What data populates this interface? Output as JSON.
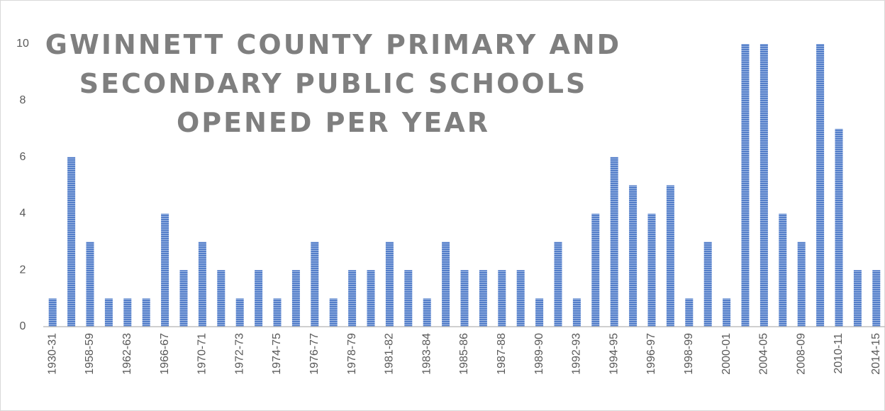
{
  "chart_data": {
    "type": "bar",
    "title": "GWINNETT COUNTY PRIMARY AND SECONDARY PUBLIC SCHOOLS OPENED PER YEAR",
    "categories": [
      "1930-31",
      null,
      "1958-59",
      null,
      "1962-63",
      null,
      "1966-67",
      null,
      "1970-71",
      null,
      "1972-73",
      null,
      "1974-75",
      null,
      "1976-77",
      null,
      "1978-79",
      null,
      "1981-82",
      null,
      "1983-84",
      null,
      "1985-86",
      null,
      "1987-88",
      null,
      "1989-90",
      null,
      "1992-93",
      null,
      "1994-95",
      null,
      "1996-97",
      null,
      "1998-99",
      null,
      "2000-01",
      null,
      "2004-05",
      null,
      "2008-09",
      null,
      "2010-11",
      null,
      "2014-15"
    ],
    "values": [
      1,
      6,
      3,
      1,
      1,
      1,
      4,
      2,
      3,
      2,
      1,
      2,
      1,
      2,
      3,
      1,
      2,
      2,
      3,
      2,
      1,
      3,
      2,
      2,
      2,
      2,
      1,
      3,
      1,
      4,
      6,
      5,
      4,
      5,
      1,
      3,
      1,
      10,
      10,
      4,
      3,
      10,
      7,
      2,
      2
    ],
    "color": "#4472c4",
    "ylim": [
      0,
      10
    ],
    "yticks": [
      0,
      2,
      4,
      6,
      8,
      10
    ],
    "grid": false
  }
}
